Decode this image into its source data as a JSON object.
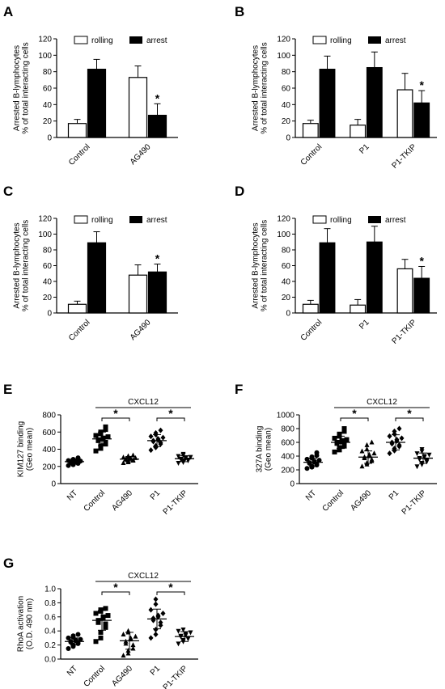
{
  "figure": {
    "panels": [
      {
        "letter": "A",
        "type": "bar",
        "ylabel": [
          "Arrested B-lymphocytes",
          "% of total interacting cells"
        ],
        "ylim": [
          0,
          120
        ],
        "yticks": [
          0,
          20,
          40,
          60,
          80,
          100,
          120
        ],
        "categories": [
          "Control",
          "AG490"
        ],
        "legend": [
          "rolling",
          "arrest"
        ],
        "series": [
          {
            "name": "rolling",
            "values": [
              17,
              73
            ],
            "errors": [
              5,
              14
            ]
          },
          {
            "name": "arrest",
            "values": [
              83,
              27
            ],
            "errors": [
              12,
              14
            ]
          }
        ],
        "significance": [
          {
            "category": "AG490",
            "series": "arrest",
            "mark": "*"
          }
        ]
      },
      {
        "letter": "B",
        "type": "bar",
        "ylabel": [
          "Arrested B-lymphocytes",
          "% of total interacting cells"
        ],
        "ylim": [
          0,
          120
        ],
        "yticks": [
          0,
          20,
          40,
          60,
          80,
          100,
          120
        ],
        "categories": [
          "Control",
          "P1",
          "P1-TKIP"
        ],
        "legend": [
          "rolling",
          "arrest"
        ],
        "series": [
          {
            "name": "rolling",
            "values": [
              17,
              15,
              58
            ],
            "errors": [
              4,
              7,
              20
            ]
          },
          {
            "name": "arrest",
            "values": [
              83,
              85,
              42
            ],
            "errors": [
              16,
              19,
              15
            ]
          }
        ],
        "significance": [
          {
            "category": "P1-TKIP",
            "series": "arrest",
            "mark": "*"
          }
        ]
      },
      {
        "letter": "C",
        "type": "bar",
        "ylabel": [
          "Arrested B-lymphocytes",
          "% of total interacting cells"
        ],
        "ylim": [
          0,
          120
        ],
        "yticks": [
          0,
          20,
          40,
          60,
          80,
          100,
          120
        ],
        "categories": [
          "Control",
          "AG490"
        ],
        "legend": [
          "rolling",
          "arrest"
        ],
        "series": [
          {
            "name": "rolling",
            "values": [
              11,
              48
            ],
            "errors": [
              4,
              13
            ]
          },
          {
            "name": "arrest",
            "values": [
              89,
              52
            ],
            "errors": [
              14,
              10
            ]
          }
        ],
        "significance": [
          {
            "category": "AG490",
            "series": "arrest",
            "mark": "*"
          }
        ]
      },
      {
        "letter": "D",
        "type": "bar",
        "ylabel": [
          "Arrested B-lymphocytes",
          "% of total interacting cells"
        ],
        "ylim": [
          0,
          120
        ],
        "yticks": [
          0,
          20,
          40,
          60,
          80,
          100,
          120
        ],
        "categories": [
          "Control",
          "P1",
          "P1-TKIP"
        ],
        "legend": [
          "rolling",
          "arrest"
        ],
        "series": [
          {
            "name": "rolling",
            "values": [
              11,
              10,
              56
            ],
            "errors": [
              5,
              7,
              12
            ]
          },
          {
            "name": "arrest",
            "values": [
              89,
              90,
              44
            ],
            "errors": [
              18,
              20,
              15
            ]
          }
        ],
        "significance": [
          {
            "category": "P1-TKIP",
            "series": "arrest",
            "mark": "*"
          }
        ]
      },
      {
        "letter": "E",
        "type": "scatter",
        "ylabel": [
          "KIM127 binding",
          "(Geo mean)"
        ],
        "ylim": [
          0,
          800
        ],
        "yticks": [
          0,
          200,
          400,
          600,
          800
        ],
        "categories": [
          "NT",
          "Control",
          "AG490",
          "P1",
          "P1-TKIP"
        ],
        "markers": [
          "circle",
          "square",
          "triangle",
          "diamond",
          "tri-down"
        ],
        "group_label": "CXCL12",
        "significance": [
          {
            "from": "Control",
            "to": "AG490",
            "mark": "*"
          },
          {
            "from": "P1",
            "to": "P1-TKIP",
            "mark": "*"
          }
        ],
        "series": [
          {
            "category": "NT",
            "mean": 255,
            "sd": 30,
            "points": [
              210,
              220,
              230,
              235,
              240,
              245,
              250,
              255,
              258,
              262,
              268,
              275,
              282,
              290,
              300
            ]
          },
          {
            "category": "Control",
            "mean": 520,
            "sd": 80,
            "points": [
              380,
              410,
              440,
              460,
              480,
              500,
              510,
              520,
              530,
              545,
              560,
              580,
              600,
              630,
              660
            ]
          },
          {
            "category": "AG490",
            "mean": 285,
            "sd": 30,
            "points": [
              240,
              250,
              260,
              268,
              275,
              280,
              285,
              288,
              292,
              298,
              305,
              312,
              320,
              330
            ]
          },
          {
            "category": "P1",
            "mean": 500,
            "sd": 70,
            "points": [
              390,
              420,
              440,
              460,
              475,
              490,
              500,
              510,
              520,
              535,
              550,
              570,
              590,
              620
            ]
          },
          {
            "category": "P1-TKIP",
            "mean": 290,
            "sd": 35,
            "points": [
              240,
              250,
              262,
              270,
              278,
              285,
              290,
              296,
              302,
              310,
              320,
              332,
              345
            ]
          }
        ]
      },
      {
        "letter": "F",
        "type": "scatter",
        "ylabel": [
          "327A binding",
          "(Geo mean)"
        ],
        "ylim": [
          0,
          1000
        ],
        "yticks": [
          0,
          200,
          400,
          600,
          800,
          1000
        ],
        "categories": [
          "NT",
          "Control",
          "AG490",
          "P1",
          "P1-TKIP"
        ],
        "markers": [
          "circle",
          "square",
          "triangle",
          "diamond",
          "tri-down"
        ],
        "group_label": "CXCL12",
        "significance": [
          {
            "from": "Control",
            "to": "AG490",
            "mark": "*"
          },
          {
            "from": "P1",
            "to": "P1-TKIP",
            "mark": "*"
          }
        ],
        "series": [
          {
            "category": "NT",
            "mean": 310,
            "sd": 60,
            "points": [
              220,
              240,
              255,
              270,
              285,
              295,
              305,
              315,
              325,
              340,
              355,
              370,
              390,
              410,
              450
            ]
          },
          {
            "category": "Control",
            "mean": 600,
            "sd": 90,
            "points": [
              460,
              490,
              520,
              545,
              565,
              585,
              600,
              610,
              625,
              640,
              660,
              690,
              720,
              760,
              800
            ]
          },
          {
            "category": "AG490",
            "mean": 385,
            "sd": 90,
            "points": [
              250,
              280,
              300,
              330,
              350,
              370,
              385,
              400,
              420,
              440,
              470,
              500,
              560,
              600
            ]
          },
          {
            "category": "P1",
            "mean": 600,
            "sd": 110,
            "points": [
              440,
              480,
              510,
              540,
              560,
              580,
              600,
              620,
              640,
              660,
              690,
              720,
              760,
              800
            ]
          },
          {
            "category": "P1-TKIP",
            "mean": 370,
            "sd": 75,
            "points": [
              250,
              280,
              300,
              320,
              340,
              355,
              370,
              385,
              400,
              420,
              440,
              470,
              500
            ]
          }
        ]
      },
      {
        "letter": "G",
        "type": "scatter",
        "ylabel": [
          "RhoA activation",
          "(O.D. 490 nm)"
        ],
        "ylim": [
          0,
          1.0
        ],
        "yticks": [
          "0.0",
          "0.2",
          "0.4",
          "0.6",
          "0.8",
          "1.0"
        ],
        "categories": [
          "NT",
          "Control",
          "AG490",
          "P1",
          "P1-TKIP"
        ],
        "markers": [
          "circle",
          "square",
          "triangle",
          "diamond",
          "tri-down"
        ],
        "group_label": "CXCL12",
        "significance": [
          {
            "from": "Control",
            "to": "AG490",
            "mark": "*"
          },
          {
            "from": "P1",
            "to": "P1-TKIP",
            "mark": "*"
          }
        ],
        "series": [
          {
            "category": "NT",
            "mean": 0.25,
            "sd": 0.05,
            "points": [
              0.15,
              0.18,
              0.2,
              0.22,
              0.23,
              0.24,
              0.25,
              0.26,
              0.27,
              0.28,
              0.3,
              0.31,
              0.33,
              0.35
            ]
          },
          {
            "category": "Control",
            "mean": 0.55,
            "sd": 0.14,
            "points": [
              0.25,
              0.3,
              0.38,
              0.45,
              0.5,
              0.52,
              0.55,
              0.58,
              0.6,
              0.62,
              0.65,
              0.68,
              0.7,
              0.72
            ]
          },
          {
            "category": "AG490",
            "mean": 0.26,
            "sd": 0.12,
            "points": [
              0.05,
              0.08,
              0.12,
              0.15,
              0.2,
              0.22,
              0.25,
              0.28,
              0.3,
              0.32,
              0.35,
              0.38,
              0.4
            ]
          },
          {
            "category": "P1",
            "mean": 0.57,
            "sd": 0.14,
            "points": [
              0.3,
              0.35,
              0.42,
              0.48,
              0.52,
              0.55,
              0.58,
              0.6,
              0.62,
              0.65,
              0.7,
              0.78,
              0.85
            ]
          },
          {
            "category": "P1-TKIP",
            "mean": 0.32,
            "sd": 0.07,
            "points": [
              0.22,
              0.25,
              0.27,
              0.29,
              0.3,
              0.32,
              0.33,
              0.34,
              0.36,
              0.38,
              0.4,
              0.42
            ]
          }
        ]
      }
    ]
  },
  "chart_data": [
    {
      "panel": "A",
      "type": "bar",
      "categories": [
        "Control",
        "AG490"
      ],
      "ylabel": "Arrested B-lymphocytes % of total interacting cells",
      "ylim": [
        0,
        120
      ],
      "series": [
        {
          "name": "rolling",
          "values": [
            17,
            73
          ]
        },
        {
          "name": "arrest",
          "values": [
            83,
            27
          ]
        }
      ]
    },
    {
      "panel": "B",
      "type": "bar",
      "categories": [
        "Control",
        "P1",
        "P1-TKIP"
      ],
      "ylabel": "Arrested B-lymphocytes % of total interacting cells",
      "ylim": [
        0,
        120
      ],
      "series": [
        {
          "name": "rolling",
          "values": [
            17,
            15,
            58
          ]
        },
        {
          "name": "arrest",
          "values": [
            83,
            85,
            42
          ]
        }
      ]
    },
    {
      "panel": "C",
      "type": "bar",
      "categories": [
        "Control",
        "AG490"
      ],
      "ylabel": "Arrested B-lymphocytes % of total interacting cells",
      "ylim": [
        0,
        120
      ],
      "series": [
        {
          "name": "rolling",
          "values": [
            11,
            48
          ]
        },
        {
          "name": "arrest",
          "values": [
            89,
            52
          ]
        }
      ]
    },
    {
      "panel": "D",
      "type": "bar",
      "categories": [
        "Control",
        "P1",
        "P1-TKIP"
      ],
      "ylabel": "Arrested B-lymphocytes % of total interacting cells",
      "ylim": [
        0,
        120
      ],
      "series": [
        {
          "name": "rolling",
          "values": [
            11,
            10,
            56
          ]
        },
        {
          "name": "arrest",
          "values": [
            89,
            90,
            44
          ]
        }
      ]
    },
    {
      "panel": "E",
      "type": "scatter",
      "categories": [
        "NT",
        "Control",
        "AG490",
        "P1",
        "P1-TKIP"
      ],
      "ylabel": "KIM127 binding (Geo mean)",
      "ylim": [
        0,
        800
      ],
      "means": [
        255,
        520,
        285,
        500,
        290
      ]
    },
    {
      "panel": "F",
      "type": "scatter",
      "categories": [
        "NT",
        "Control",
        "AG490",
        "P1",
        "P1-TKIP"
      ],
      "ylabel": "327A binding (Geo mean)",
      "ylim": [
        0,
        1000
      ],
      "means": [
        310,
        600,
        385,
        600,
        370
      ]
    },
    {
      "panel": "G",
      "type": "scatter",
      "categories": [
        "NT",
        "Control",
        "AG490",
        "P1",
        "P1-TKIP"
      ],
      "ylabel": "RhoA activation (O.D. 490 nm)",
      "ylim": [
        0,
        1.0
      ],
      "means": [
        0.25,
        0.55,
        0.26,
        0.57,
        0.32
      ]
    }
  ]
}
